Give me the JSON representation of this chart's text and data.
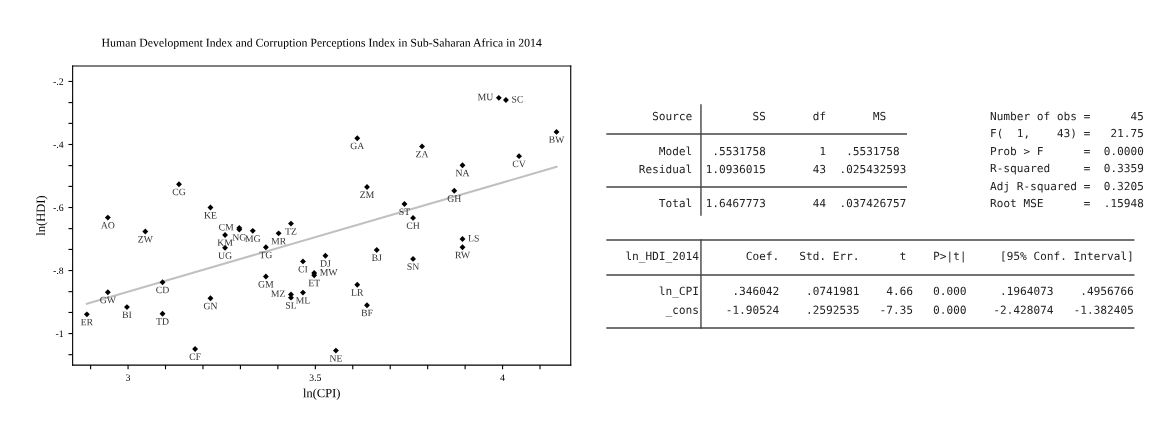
{
  "chart_data": [
    {
      "type": "scatter",
      "title": "Human Development Index and Corruption Perceptions Index in Sub-Saharan Africa in 2014",
      "xlabel": "ln(CPI)",
      "ylabel": "ln(HDI)",
      "xlim": [
        2.852,
        4.182
      ],
      "ylim": [
        -1.1,
        -0.151
      ],
      "xticks": [
        {
          "value": 2.9,
          "label": null
        },
        {
          "value": 3,
          "label": "3"
        },
        {
          "value": 3.1,
          "label": null
        },
        {
          "value": 3.2,
          "label": null
        },
        {
          "value": 3.3,
          "label": null
        },
        {
          "value": 3.4,
          "label": null
        },
        {
          "value": 3.5,
          "label": "3.5"
        },
        {
          "value": 3.6,
          "label": null
        },
        {
          "value": 3.7,
          "label": null
        },
        {
          "value": 3.8,
          "label": null
        },
        {
          "value": 3.9,
          "label": null
        },
        {
          "value": 4,
          "label": "4"
        },
        {
          "value": 4.1,
          "label": null
        }
      ],
      "yticks": [
        {
          "value": -0.2,
          "label": "-.2"
        },
        {
          "value": -0.267,
          "label": null
        },
        {
          "value": -0.333,
          "label": null
        },
        {
          "value": -0.4,
          "label": "-.4"
        },
        {
          "value": -0.467,
          "label": null
        },
        {
          "value": -0.533,
          "label": null
        },
        {
          "value": -0.6,
          "label": "-.6"
        },
        {
          "value": -0.667,
          "label": null
        },
        {
          "value": -0.733,
          "label": null
        },
        {
          "value": -0.8,
          "label": "-.8"
        },
        {
          "value": -0.867,
          "label": null
        },
        {
          "value": -0.933,
          "label": null
        },
        {
          "value": -1,
          "label": "-1"
        },
        {
          "value": -1.067,
          "label": null
        }
      ],
      "grid": false,
      "legend": false,
      "marker": "diamond",
      "series": [
        {
          "type": "scatter",
          "color": "#000000",
          "x": [
            2.89,
            2.946,
            2.946,
            2.997,
            3.046,
            3.092,
            3.092,
            3.136,
            3.179,
            3.22,
            3.22,
            3.259,
            3.259,
            3.297,
            3.297,
            3.333,
            3.402,
            3.368,
            3.435,
            3.368,
            3.467,
            3.527,
            3.497,
            3.497,
            3.467,
            3.435,
            3.435,
            3.612,
            3.638,
            3.555,
            3.612,
            3.638,
            3.664,
            3.738,
            3.761,
            3.761,
            3.785,
            3.871,
            3.893,
            3.893,
            3.893,
            3.99,
            4.009,
            4.044,
            4.144
          ],
          "values": [
            -0.939,
            -0.632,
            -0.869,
            -0.916,
            -0.676,
            -0.837,
            -0.937,
            -0.526,
            -1.049,
            -0.6,
            -0.888,
            -0.687,
            -0.728,
            -0.665,
            -0.67,
            -0.674,
            -0.682,
            -0.726,
            -0.651,
            -0.819,
            -0.771,
            -0.753,
            -0.808,
            -0.815,
            -0.87,
            -0.876,
            -0.886,
            -0.845,
            -0.91,
            -1.054,
            -0.38,
            -0.535,
            -0.735,
            -0.589,
            -0.633,
            -0.763,
            -0.406,
            -0.547,
            -0.466,
            -0.7,
            -0.726,
            -0.252,
            -0.259,
            -0.437,
            -0.36
          ],
          "value_labels": [
            "ER",
            "AO",
            "GW",
            "BI",
            "ZW",
            "CD",
            "TD",
            "CG",
            "CF",
            "KE",
            "GN",
            "KM",
            "UG",
            "CM",
            "NG",
            "MG",
            "MR",
            "TG",
            "TZ",
            "GM",
            "CI",
            "DJ",
            "MW",
            "ET",
            "ML",
            "MZ",
            "SL",
            "LR",
            "BF",
            "NE",
            "GA",
            "ZM",
            "BJ",
            "ST",
            "CH",
            "SN",
            "ZA",
            "GH",
            "NA",
            "LS",
            "RW",
            "MU",
            "SC",
            "CV",
            "BW"
          ]
        },
        {
          "type": "line",
          "marker": "none",
          "color": "#c0c0c0",
          "x": [
            2.89,
            4.144
          ],
          "values": [
            -0.905,
            -0.471
          ]
        }
      ]
    },
    {
      "type": "other",
      "annotations": [
        "      Source         SS       df       MS",
        "       Model   .5531758        1   .5531758",
        "    Residual  1.0936015       43  .025432593",
        "       Total  1.6467773       44  .037426757",
        "Number of obs =      45",
        "F(  1,    43) =   21.75",
        "Prob > F      =  0.0000",
        "R-squared     =  0.3359",
        "Adj R-squared =  0.3205",
        "Root MSE      =  .15948",
        "  ln_HDI_2014       Coef.   Std. Err.      t    P>|t|     [95% Conf. Interval]",
        "       ln_CPI     .346042    .0741981    4.66   0.000     .1964073    .4956766",
        "        _cons    -1.90524    .2592535   -7.35   0.000    -2.428074   -1.382405"
      ]
    }
  ]
}
